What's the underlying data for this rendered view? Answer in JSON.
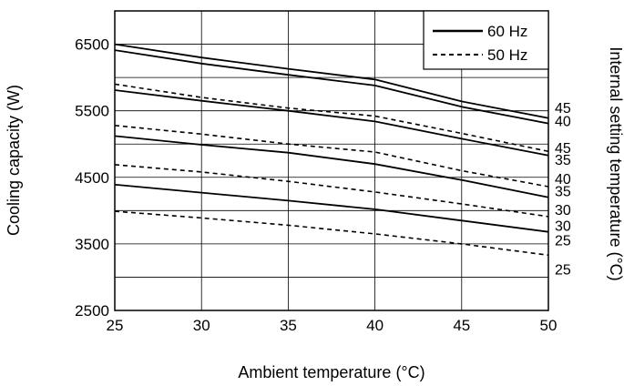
{
  "chart_data": {
    "type": "line",
    "xlabel": "Ambient temperature (°C)",
    "ylabel": "Cooling capacity (W)",
    "ylabel_right": "Internal setting temperature (°C)",
    "xlim": [
      25,
      50
    ],
    "ylim": [
      2500,
      7000
    ],
    "x_ticks": [
      25,
      30,
      35,
      40,
      45,
      50
    ],
    "y_ticks": [
      2500,
      3500,
      4500,
      5500,
      6500
    ],
    "x_tick_labels": [
      "25",
      "30",
      "35",
      "40",
      "45",
      "50"
    ],
    "y_tick_labels": [
      "2500",
      "3500",
      "4500",
      "5500",
      "6500"
    ],
    "grid": true,
    "legend_position": "top-right",
    "legend": [
      {
        "label": "60 Hz",
        "style": "solid"
      },
      {
        "label": "50 Hz",
        "style": "dashed"
      }
    ],
    "series": [
      {
        "name": "60 Hz",
        "setting": "45",
        "style": "solid",
        "x": [
          25,
          30,
          35,
          40,
          45,
          50
        ],
        "y": [
          6500,
          6300,
          6130,
          5970,
          5640,
          5390
        ]
      },
      {
        "name": "60 Hz",
        "setting": "45",
        "style": "solid",
        "x": [
          25,
          30,
          35,
          40,
          45,
          50
        ],
        "y": [
          6410,
          6210,
          6040,
          5880,
          5560,
          5310
        ]
      },
      {
        "name": "60 Hz",
        "setting": "40",
        "style": "solid",
        "x": [
          25,
          30,
          35,
          40,
          45,
          50
        ],
        "y": [
          5810,
          5650,
          5500,
          5340,
          5080,
          4830
        ]
      },
      {
        "name": "60 Hz",
        "setting": "35",
        "style": "solid",
        "x": [
          25,
          30,
          35,
          40,
          45,
          50
        ],
        "y": [
          5120,
          4990,
          4870,
          4700,
          4460,
          4200
        ]
      },
      {
        "name": "60 Hz",
        "setting": "30",
        "style": "solid",
        "x": [
          25,
          30,
          35,
          40,
          45,
          50
        ],
        "y": [
          4390,
          4270,
          4150,
          4020,
          3850,
          3680
        ]
      },
      {
        "name": "50 Hz",
        "setting": "45",
        "style": "dashed",
        "x": [
          25,
          30,
          35,
          40,
          45,
          50
        ],
        "y": [
          5900,
          5700,
          5540,
          5420,
          5160,
          4890
        ]
      },
      {
        "name": "50 Hz",
        "setting": "40",
        "style": "dashed",
        "x": [
          25,
          30,
          35,
          40,
          45,
          50
        ],
        "y": [
          5280,
          5150,
          5000,
          4880,
          4600,
          4360
        ]
      },
      {
        "name": "50 Hz",
        "setting": "35",
        "style": "dashed",
        "x": [
          25,
          30,
          35,
          40,
          45,
          50
        ],
        "y": [
          4690,
          4580,
          4440,
          4280,
          4100,
          3910
        ]
      },
      {
        "name": "50 Hz",
        "setting": "25",
        "style": "dashed",
        "x": [
          25,
          30,
          35,
          40,
          45,
          50
        ],
        "y": [
          3990,
          3890,
          3780,
          3650,
          3500,
          3330
        ]
      }
    ],
    "right_labels": [
      {
        "text": "45",
        "y": 5550
      },
      {
        "text": "40",
        "y": 5350
      },
      {
        "text": "45",
        "y": 4950
      },
      {
        "text": "35",
        "y": 4770
      },
      {
        "text": "40",
        "y": 4480
      },
      {
        "text": "35",
        "y": 4300
      },
      {
        "text": "30",
        "y": 4020
      },
      {
        "text": "30",
        "y": 3780
      },
      {
        "text": "25",
        "y": 3560
      },
      {
        "text": "25",
        "y": 3120
      }
    ]
  }
}
